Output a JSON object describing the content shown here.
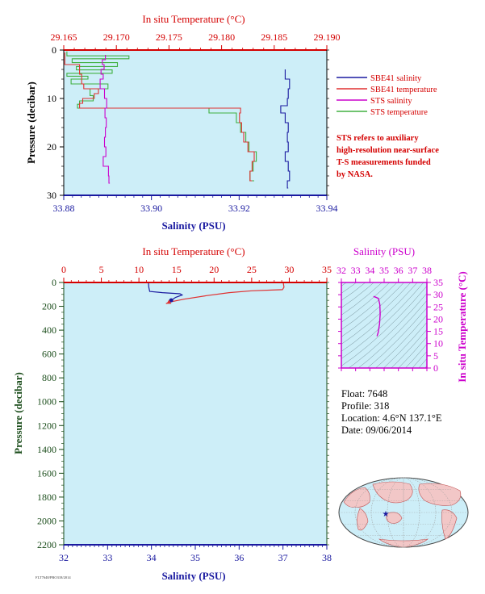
{
  "top_chart": {
    "title_top": "In situ Temperature (°C)",
    "xlabel": "Salinity (PSU)",
    "ylabel": "Pressure (decibar)",
    "temp_ticks": [
      "29.165",
      "29.170",
      "29.175",
      "29.180",
      "29.185",
      "29.190"
    ],
    "sal_ticks": [
      "33.88",
      "33.90",
      "33.92",
      "33.94"
    ],
    "p_ticks": [
      "0",
      "10",
      "20",
      "30"
    ],
    "legend": [
      {
        "label": "SBE41 salinity",
        "color": "#1a1aa0"
      },
      {
        "label": "SBE41 temperature",
        "color": "#e03030"
      },
      {
        "label": "STS salinity",
        "color": "#cc00cc"
      },
      {
        "label": "STS temperature",
        "color": "#40b040"
      }
    ],
    "note": [
      "STS refers to auxiliary",
      "high-resolution near-surface",
      "T-S measurements funded",
      "by NASA."
    ]
  },
  "bottom_chart": {
    "title_top": "In situ Temperature (°C)",
    "xlabel": "Salinity (PSU)",
    "ylabel": "Pressure (decibar)",
    "temp_ticks": [
      "0",
      "5",
      "10",
      "15",
      "20",
      "25",
      "30",
      "35"
    ],
    "sal_ticks": [
      "32",
      "33",
      "34",
      "35",
      "36",
      "37",
      "38"
    ],
    "p_ticks": [
      "0",
      "200",
      "400",
      "600",
      "800",
      "1000",
      "1200",
      "1400",
      "1600",
      "1800",
      "2000",
      "2200"
    ]
  },
  "ts_chart": {
    "title_top": "Salinity (PSU)",
    "ylabel": "In situ Temperature (°C)",
    "sal_ticks": [
      "32",
      "33",
      "34",
      "35",
      "36",
      "37",
      "38"
    ],
    "temp_ticks": [
      "0",
      "5",
      "10",
      "15",
      "20",
      "25",
      "30",
      "35"
    ]
  },
  "float_info": {
    "float": "Float:  7648",
    "profile": "Profile:  318",
    "location": "Location:  4.6°N  137.1°E",
    "date": "Date:  09/06/2014"
  },
  "footer_code": "FLT7648/PRO318/2014",
  "colors": {
    "plot_bg": "#cdeef8",
    "temp": "#e03030",
    "sal": "#1a1aa0",
    "sts_sal": "#cc00cc",
    "sts_temp": "#40b040"
  },
  "chart_data": [
    {
      "type": "line",
      "x_axis_bottom": "Salinity (PSU)",
      "x_axis_top": "In situ Temperature (°C)",
      "y_axis": "Pressure (decibar)",
      "sal_range": [
        33.88,
        33.94
      ],
      "temp_range": [
        29.165,
        29.19
      ],
      "ylim": [
        30,
        0
      ],
      "series": [
        {
          "name": "SBE41 salinity",
          "x_unit": "sal",
          "points": [
            [
              33.9305,
              4
            ],
            [
              33.9315,
              6
            ],
            [
              33.9312,
              8
            ],
            [
              33.931,
              10
            ],
            [
              33.9295,
              11.5
            ],
            [
              33.9305,
              13
            ],
            [
              33.9312,
              15
            ],
            [
              33.931,
              17
            ],
            [
              33.9312,
              19
            ],
            [
              33.9305,
              21
            ],
            [
              33.9312,
              23
            ],
            [
              33.9315,
              25
            ],
            [
              33.931,
              27
            ],
            [
              33.9312,
              28.5
            ]
          ]
        },
        {
          "name": "SBE41 temperature",
          "x_unit": "temp",
          "points": [
            [
              29.1651,
              0.5
            ],
            [
              29.1665,
              3
            ],
            [
              29.1667,
              5
            ],
            [
              29.1669,
              7
            ],
            [
              29.1683,
              8
            ],
            [
              29.1679,
              9
            ],
            [
              29.1668,
              10
            ],
            [
              29.1665,
              11
            ],
            [
              29.1818,
              12
            ],
            [
              29.1817,
              13
            ],
            [
              29.1819,
              15
            ],
            [
              29.1821,
              17
            ],
            [
              29.1825,
              19
            ],
            [
              29.1831,
              21
            ],
            [
              29.1829,
              23
            ],
            [
              29.1827,
              25
            ],
            [
              29.1829,
              27
            ]
          ]
        },
        {
          "name": "STS salinity",
          "x_unit": "sal",
          "points": [
            [
              33.8895,
              1
            ],
            [
              33.8888,
              2
            ],
            [
              33.8892,
              3
            ],
            [
              33.8885,
              4
            ],
            [
              33.889,
              5
            ],
            [
              33.8883,
              6
            ],
            [
              33.8893,
              8
            ],
            [
              33.8898,
              10
            ],
            [
              33.8894,
              12
            ],
            [
              33.8897,
              14
            ],
            [
              33.8895,
              16
            ],
            [
              33.8893,
              18
            ],
            [
              33.8896,
              20
            ],
            [
              33.889,
              22
            ],
            [
              33.8902,
              24
            ],
            [
              33.8903,
              26
            ],
            [
              33.8905,
              27.5
            ]
          ]
        },
        {
          "name": "STS temperature",
          "x_unit": "temp",
          "points": [
            [
              29.1653,
              0.3
            ],
            [
              29.1712,
              1.2
            ],
            [
              29.1658,
              1.8
            ],
            [
              29.1701,
              2.6
            ],
            [
              29.1662,
              3.4
            ],
            [
              29.1696,
              4.1
            ],
            [
              29.1653,
              4.8
            ],
            [
              29.1673,
              5.4
            ],
            [
              29.1657,
              6
            ],
            [
              29.1692,
              7
            ],
            [
              29.1675,
              8
            ],
            [
              29.1678,
              9.4
            ],
            [
              29.1665,
              10.5
            ],
            [
              29.1663,
              11.2
            ],
            [
              29.1788,
              12
            ],
            [
              29.1814,
              13
            ],
            [
              29.1818,
              15
            ],
            [
              29.1823,
              17
            ],
            [
              29.1826,
              19
            ],
            [
              29.1833,
              21
            ],
            [
              29.183,
              23
            ],
            [
              29.1827,
              25
            ],
            [
              29.1831,
              27
            ]
          ]
        }
      ]
    },
    {
      "type": "line",
      "x_axis_bottom": "Salinity (PSU)",
      "x_axis_top": "In situ Temperature (°C)",
      "y_axis": "Pressure (decibar)",
      "sal_range": [
        32,
        38
      ],
      "temp_range": [
        0,
        35
      ],
      "ylim": [
        2200,
        0
      ],
      "series": [
        {
          "name": "SBE41 salinity",
          "x_unit": "sal",
          "points": [
            [
              33.93,
              0
            ],
            [
              33.94,
              40
            ],
            [
              33.96,
              75
            ],
            [
              34.25,
              85
            ],
            [
              34.65,
              95
            ],
            [
              34.7,
              105
            ],
            [
              34.55,
              125
            ],
            [
              34.45,
              150
            ],
            [
              34.42,
              170
            ]
          ]
        },
        {
          "name": "SBE41 temperature",
          "x_unit": "temp",
          "points": [
            [
              29.2,
              0
            ],
            [
              29.3,
              40
            ],
            [
              29.1,
              60
            ],
            [
              25,
              70
            ],
            [
              22,
              85
            ],
            [
              19,
              110
            ],
            [
              16,
              140
            ],
            [
              14,
              165
            ],
            [
              13.6,
              178
            ]
          ]
        }
      ]
    },
    {
      "type": "line",
      "x_axis_top": "Salinity (PSU)",
      "y_axis": "In situ Temperature (°C)",
      "sal_range": [
        32,
        38
      ],
      "temp_range": [
        0,
        35
      ],
      "series": [
        {
          "name": "T-S",
          "points": [
            [
              34.25,
              29.3
            ],
            [
              34.4,
              29
            ],
            [
              34.6,
              28.5
            ],
            [
              34.7,
              26
            ],
            [
              34.72,
              22
            ],
            [
              34.68,
              18
            ],
            [
              34.58,
              14.5
            ],
            [
              34.5,
              13
            ]
          ]
        }
      ]
    }
  ]
}
